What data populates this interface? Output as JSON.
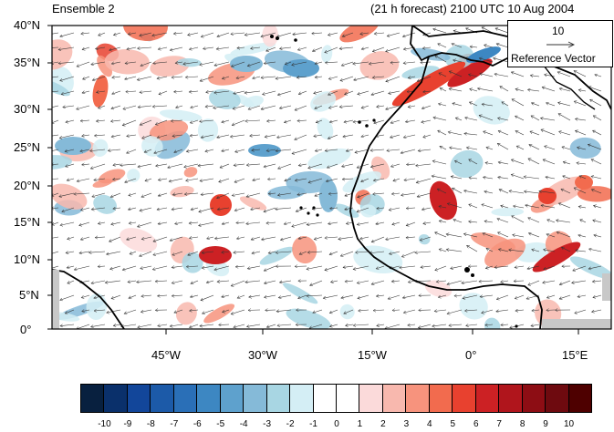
{
  "header": {
    "left_title": "Ensemble 2",
    "right_title": "(21 h forecast) 2100 UTC 10 Aug 2004"
  },
  "map": {
    "lat_labels": [
      "40°N",
      "35°N",
      "30°N",
      "25°N",
      "20°N",
      "15°N",
      "10°N",
      "5°N",
      "0°"
    ],
    "lon_labels": [
      "45°W",
      "30°W",
      "15°W",
      "0°",
      "15°E"
    ],
    "land_color": "#c8c8c8"
  },
  "reference_vector": {
    "value": "10",
    "label": "Reference Vector"
  },
  "colorbar": {
    "labels": [
      "-10",
      "-9",
      "-8",
      "-7",
      "-6",
      "-5",
      "-4",
      "-3",
      "-2",
      "-1",
      "0",
      "1",
      "2",
      "3",
      "4",
      "5",
      "6",
      "7",
      "8",
      "9",
      "10"
    ],
    "colors": [
      "#08203f",
      "#0a306b",
      "#12469a",
      "#1c5aa8",
      "#2a6fb7",
      "#3d87c2",
      "#5ea1cd",
      "#85bad8",
      "#a8d6e3",
      "#d4eef5",
      "#ffffff",
      "#ffffff",
      "#fbdada",
      "#f8b8ae",
      "#f7937d",
      "#f26b4e",
      "#e8412f",
      "#cc2124",
      "#b0151c",
      "#8d0d14",
      "#6e0a0f",
      "#4e0000"
    ]
  }
}
